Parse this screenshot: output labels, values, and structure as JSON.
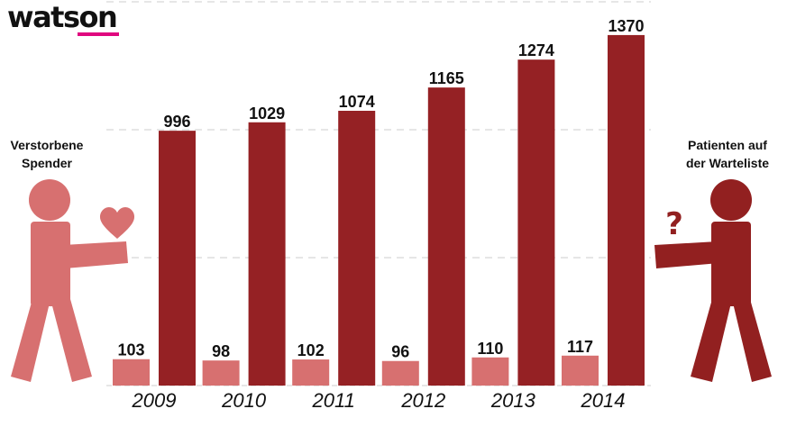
{
  "logo": {
    "text": "watson",
    "accent_color": "#e0067f"
  },
  "left_figure": {
    "label_line1": "Verstorbene",
    "label_line2": "Spender",
    "icon": "person-holding-heart-icon",
    "color": "#d77070"
  },
  "right_figure": {
    "label_line1": "Patienten auf",
    "label_line2": "der Warteliste",
    "icon": "person-with-question-mark-icon",
    "color": "#922020"
  },
  "colors": {
    "donors": "#d77070",
    "waitlist": "#952124",
    "grid": "#cccccc",
    "text": "#111111"
  },
  "chart_data": {
    "type": "bar",
    "categories": [
      "2009",
      "2010",
      "2011",
      "2012",
      "2013",
      "2014"
    ],
    "series": [
      {
        "name": "Verstorbene Spender",
        "values": [
          103,
          98,
          102,
          96,
          110,
          117
        ]
      },
      {
        "name": "Patienten auf der Warteliste",
        "values": [
          996,
          1029,
          1074,
          1165,
          1274,
          1370
        ]
      }
    ],
    "value_labels": [
      [
        "103",
        "98",
        "102",
        "96",
        "110",
        "117"
      ],
      [
        "996",
        "1029",
        "1074",
        "1165",
        "1274",
        "1370"
      ]
    ],
    "ylim": [
      0,
      1500
    ],
    "grid": true,
    "grid_values": [
      1000,
      1500,
      500,
      0
    ],
    "title": "",
    "xlabel": "",
    "ylabel": ""
  }
}
